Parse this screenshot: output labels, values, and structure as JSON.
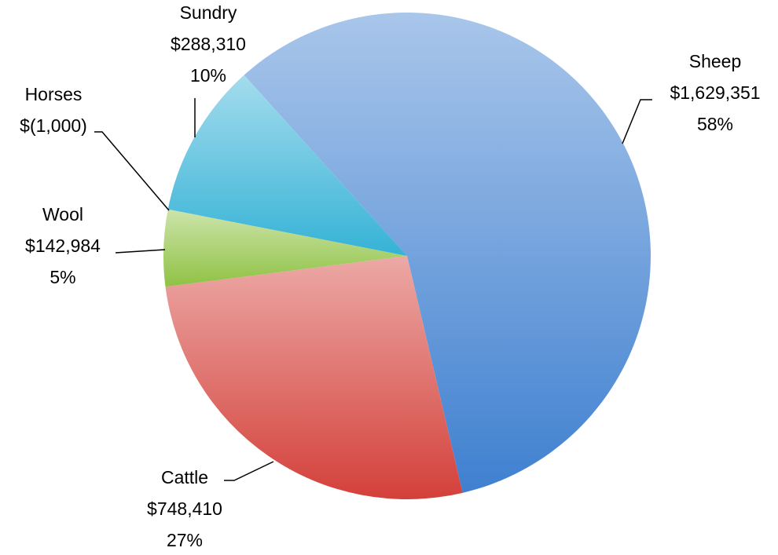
{
  "chart_data": {
    "type": "pie",
    "categories": [
      "Sheep",
      "Cattle",
      "Wool",
      "Horses",
      "Sundry"
    ],
    "values": [
      1629351,
      748410,
      142984,
      -1000,
      288310
    ],
    "value_labels": [
      "$1,629,351",
      "$748,410",
      "$142,984",
      "$(1,000)",
      "$288,310"
    ],
    "percent_labels": [
      "58%",
      "27%",
      "5%",
      null,
      "10%"
    ],
    "colors": [
      "#3f80d0",
      "#d4403a",
      "#8fc244",
      "#8064a2",
      "#35b2d6"
    ]
  }
}
